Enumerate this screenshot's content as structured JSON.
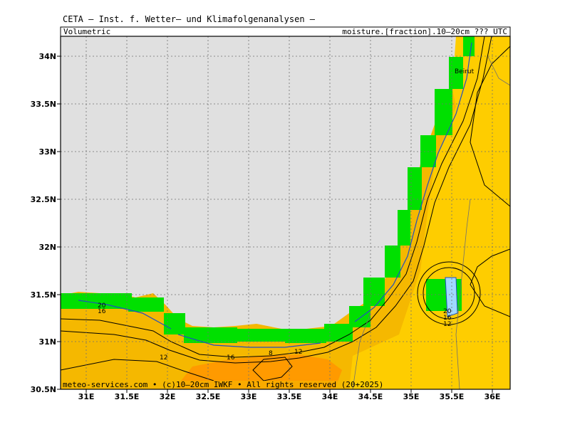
{
  "title": "CETA — Inst. f. Wetter— und Klimafolgenanalysen —",
  "header_left": "Volumetric",
  "header_right": "moisture.[fraction].10—20cm ??? UTC",
  "footer": "meteo-services.com • (c)10—20cm IWKF • All rights reserved (20+2025)",
  "city_label": "Beirut",
  "x_ticks": [
    "31E",
    "31.5E",
    "32E",
    "32.5E",
    "33E",
    "33.5E",
    "34E",
    "34.5E",
    "35E",
    "35.5E",
    "36E"
  ],
  "y_ticks": [
    "34N",
    "33.5N",
    "33N",
    "32.5N",
    "32N",
    "31.5N",
    "31N",
    "30.5N"
  ],
  "contour_labels": [
    "20",
    "16",
    "12",
    "16",
    "8",
    "12",
    "20",
    "16",
    "12"
  ],
  "colors": {
    "sea": "#e0e0e0",
    "land_low": "#f5b800",
    "land_mid": "#ffd000",
    "land_high": "#ff9a00",
    "wet": "#00e000",
    "wet_blue": "#2050c0",
    "wet_light": "#a0d8ff"
  }
}
